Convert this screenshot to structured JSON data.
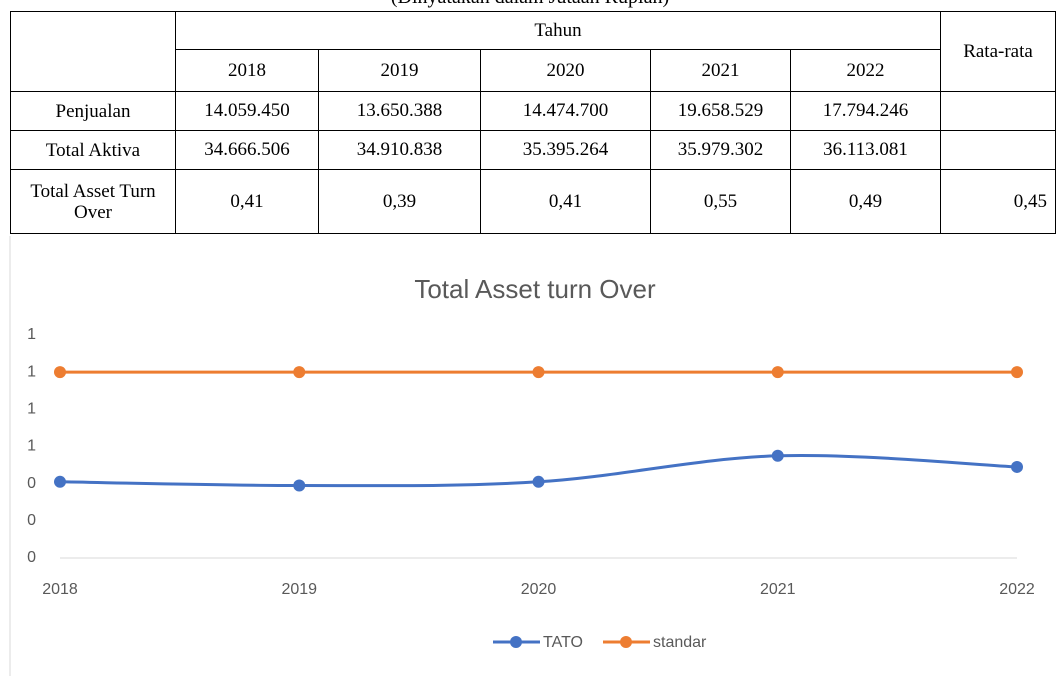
{
  "caption": "(Dinyatakan dalam Jutaan Rupiah)",
  "table": {
    "header": {
      "group": "Tahun",
      "years": [
        "2018",
        "2019",
        "2020",
        "2021",
        "2022"
      ],
      "average": "Rata-rata"
    },
    "rows": [
      {
        "label": "Penjualan",
        "cells": [
          "14.059.450",
          "13.650.388",
          "14.474.700",
          "19.658.529",
          "17.794.246"
        ]
      },
      {
        "label": "Total Aktiva",
        "cells": [
          "34.666.506",
          "34.910.838",
          "35.395.264",
          "35.979.302",
          "36.113.081"
        ]
      },
      {
        "label": "Total Asset Turn Over",
        "cells": [
          "0,41",
          "0,39",
          "0,41",
          "0,55",
          "0,49"
        ],
        "average": "0,45"
      }
    ]
  },
  "chart_data": {
    "type": "line",
    "title": "Total Asset turn Over",
    "categories": [
      "2018",
      "2019",
      "2020",
      "2021",
      "2022"
    ],
    "series": [
      {
        "name": "TATO",
        "color": "#4472c4",
        "values": [
          0.41,
          0.39,
          0.41,
          0.55,
          0.49
        ]
      },
      {
        "name": "standar",
        "color": "#ed7d31",
        "values": [
          1,
          1,
          1,
          1,
          1
        ]
      }
    ],
    "ylim": [
      0,
      1.2
    ],
    "yticks": [
      0,
      {
        "value": 0.2,
        "label": "0"
      },
      {
        "value": 0.4,
        "label": "0"
      },
      {
        "value": 0.6,
        "label": "1"
      },
      {
        "value": 0.8,
        "label": "1"
      },
      1,
      {
        "value": 1.2,
        "label": "1"
      }
    ],
    "smooth": true,
    "legend": "bottom"
  }
}
